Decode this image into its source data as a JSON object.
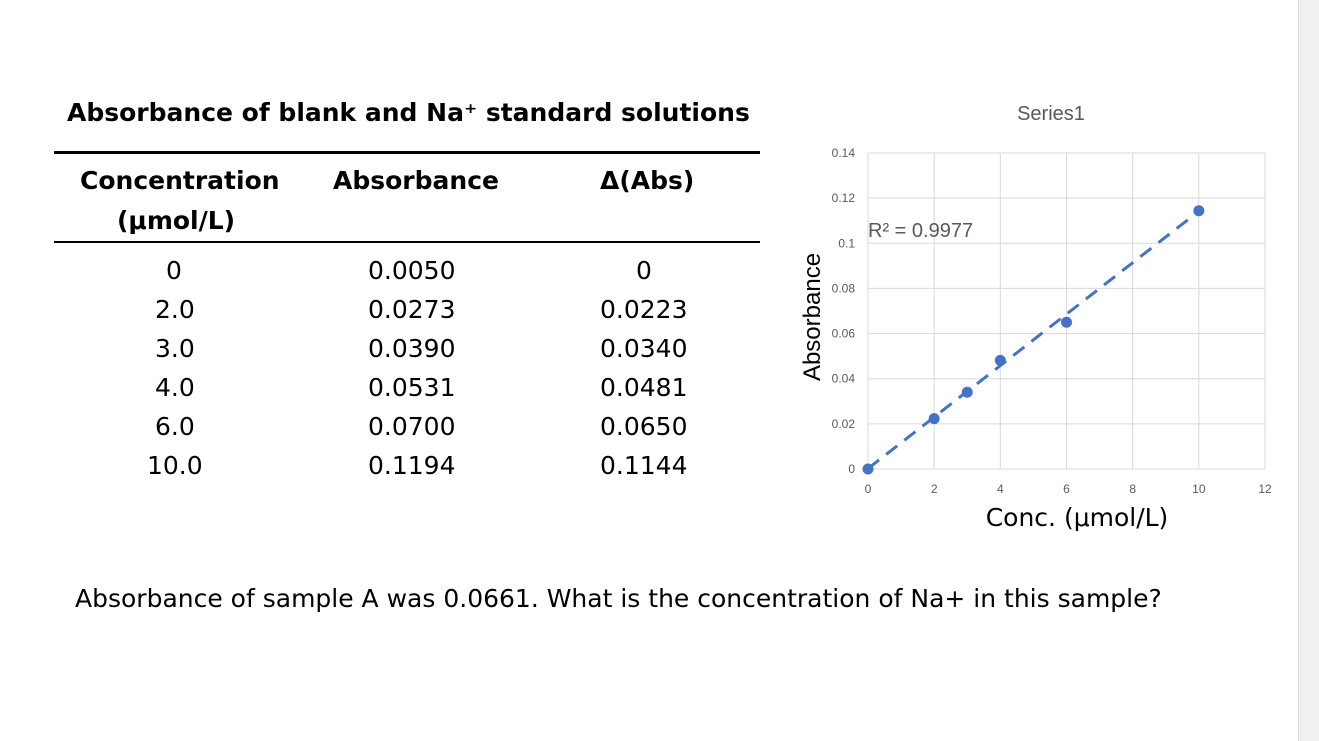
{
  "table": {
    "title": "Absorbance of blank and Na⁺ standard solutions",
    "headers": {
      "concentration_line1": "Concentration",
      "concentration_line2": "(μmol/L)",
      "absorbance": "Absorbance",
      "delta": "Δ(Abs)"
    },
    "rows": [
      {
        "conc": "0",
        "abs": "0.0050",
        "delta": "0"
      },
      {
        "conc": "2.0",
        "abs": "0.0273",
        "delta": "0.0223"
      },
      {
        "conc": "3.0",
        "abs": "0.0390",
        "delta": "0.0340"
      },
      {
        "conc": "4.0",
        "abs": "0.0531",
        "delta": "0.0481"
      },
      {
        "conc": "6.0",
        "abs": "0.0700",
        "delta": "0.0650"
      },
      {
        "conc": "10.0",
        "abs": "0.1194",
        "delta": "0.1144"
      }
    ]
  },
  "question": "Absorbance of sample A was 0.0661. What is the concentration of Na+ in this sample?",
  "chart_data": {
    "type": "scatter",
    "title": "Series1",
    "xlabel": "Conc. (μmol/L)",
    "ylabel": "Absorbance",
    "xlim": [
      0,
      12
    ],
    "ylim": [
      0,
      0.14
    ],
    "x_ticks": [
      "0",
      "2",
      "4",
      "6",
      "8",
      "10",
      "12"
    ],
    "y_ticks": [
      "0",
      "0.02",
      "0.04",
      "0.06",
      "0.08",
      "0.1",
      "0.12",
      "0.14"
    ],
    "grid": true,
    "series": [
      {
        "x": [
          0,
          2,
          3,
          4,
          6,
          10
        ],
        "y": [
          0,
          0.0223,
          0.034,
          0.0481,
          0.065,
          0.1144
        ],
        "color": "#4472c4"
      }
    ],
    "trendline": {
      "style": "dashed",
      "color": "#4472c4",
      "from": [
        0,
        0.0002
      ],
      "to": [
        10,
        0.1142
      ],
      "label": "R² = 0.9977"
    }
  }
}
